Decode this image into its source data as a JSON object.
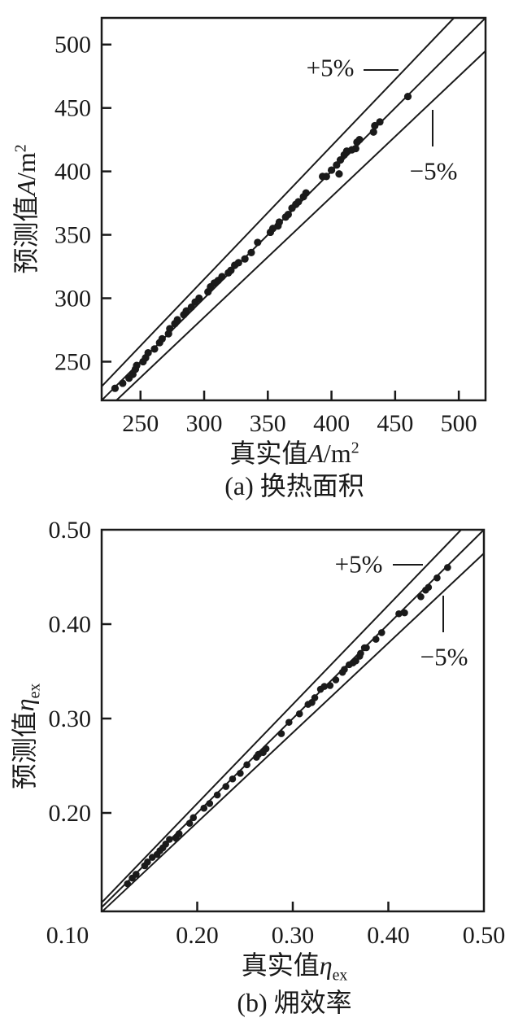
{
  "colors": {
    "ink": "#1a1a1a",
    "background": "#ffffff"
  },
  "panels": {
    "a": {
      "caption": "(a) 换热面积",
      "x_label": {
        "cjk": "真实值",
        "var": "A",
        "unit": "/m",
        "sup": "2"
      },
      "y_label": {
        "cjk": "预测值",
        "var": "A",
        "unit": "/m",
        "sup": "2"
      },
      "plus_label": "+5%",
      "minus_label": "−5%"
    },
    "b": {
      "caption": "(b) 㶲效率",
      "x_label": {
        "cjk": "真实值",
        "var": "η",
        "sub": "ex"
      },
      "y_label": {
        "cjk": "预测值",
        "var": "η",
        "sub": "ex"
      },
      "plus_label": "+5%",
      "minus_label": "−5%"
    }
  },
  "chart_data": [
    {
      "type": "scatter",
      "panel": "a",
      "caption": "(a) 换热面积",
      "xlabel": "真实值A/m²",
      "ylabel": "预测值A/m²",
      "xlim": [
        219.5,
        521
      ],
      "ylim": [
        219.5,
        521
      ],
      "x_ticks": [
        250,
        300,
        350,
        400,
        450,
        500
      ],
      "x_tick_labels": [
        "250",
        "300",
        "350",
        "400",
        "450",
        "500"
      ],
      "y_ticks": [
        250,
        300,
        350,
        400,
        450,
        500
      ],
      "y_tick_labels": [
        "250",
        "300",
        "350",
        "400",
        "450",
        "500"
      ],
      "grid": false,
      "ref_lines": [
        {
          "label": "+5%",
          "slope": 1.05
        },
        {
          "label": "y=x",
          "slope": 1.0
        },
        {
          "label": "−5%",
          "slope": 0.95
        }
      ],
      "points": [
        [
          230,
          229
        ],
        [
          236,
          233
        ],
        [
          241,
          237
        ],
        [
          244,
          240
        ],
        [
          246,
          244
        ],
        [
          247,
          247
        ],
        [
          252,
          250
        ],
        [
          254,
          253
        ],
        [
          256,
          257
        ],
        [
          261,
          260
        ],
        [
          265,
          265
        ],
        [
          267,
          268
        ],
        [
          272,
          272
        ],
        [
          273,
          276
        ],
        [
          277,
          280
        ],
        [
          279,
          283
        ],
        [
          284,
          287
        ],
        [
          286,
          290
        ],
        [
          290,
          293
        ],
        [
          293,
          297
        ],
        [
          296,
          300
        ],
        [
          303,
          305
        ],
        [
          305,
          309
        ],
        [
          308,
          312
        ],
        [
          311,
          314
        ],
        [
          314,
          317
        ],
        [
          319,
          320
        ],
        [
          321,
          322
        ],
        [
          324,
          326
        ],
        [
          327,
          328
        ],
        [
          332,
          331
        ],
        [
          337,
          336
        ],
        [
          342,
          344
        ],
        [
          352,
          352
        ],
        [
          354,
          355
        ],
        [
          358,
          357
        ],
        [
          359,
          360
        ],
        [
          364,
          364
        ],
        [
          366,
          366
        ],
        [
          369,
          371
        ],
        [
          372,
          374
        ],
        [
          374,
          376
        ],
        [
          378,
          380
        ],
        [
          380,
          383
        ],
        [
          393,
          396
        ],
        [
          396,
          396
        ],
        [
          400,
          401
        ],
        [
          404,
          405
        ],
        [
          406,
          398
        ],
        [
          407,
          409
        ],
        [
          410,
          413
        ],
        [
          412,
          416
        ],
        [
          416,
          417
        ],
        [
          419,
          418
        ],
        [
          420,
          423
        ],
        [
          422,
          425
        ],
        [
          433,
          431
        ],
        [
          434,
          436
        ],
        [
          438,
          439
        ],
        [
          460,
          459
        ]
      ]
    },
    {
      "type": "scatter",
      "panel": "b",
      "caption": "(b) 㶲效率",
      "xlabel": "真实值η_ex",
      "ylabel": "预测值η_ex",
      "xlim": [
        0.1,
        0.5
      ],
      "ylim": [
        0.0957,
        0.5
      ],
      "x_ticks": [
        0.1,
        0.2,
        0.3,
        0.4,
        0.5
      ],
      "x_tick_labels": [
        "0.10",
        "0.20",
        "0.30",
        "0.40",
        "0.50"
      ],
      "y_ticks": [
        0.2,
        0.3,
        0.4,
        0.5
      ],
      "y_tick_labels": [
        "0.20",
        "0.30",
        "0.40",
        "0.50"
      ],
      "grid": false,
      "ref_lines": [
        {
          "label": "+5%",
          "slope": 1.05
        },
        {
          "label": "y=x",
          "slope": 1.0
        },
        {
          "label": "−5%",
          "slope": 0.95
        }
      ],
      "points": [
        [
          0.127,
          0.125
        ],
        [
          0.132,
          0.131
        ],
        [
          0.136,
          0.135
        ],
        [
          0.145,
          0.144
        ],
        [
          0.148,
          0.148
        ],
        [
          0.153,
          0.153
        ],
        [
          0.158,
          0.156
        ],
        [
          0.161,
          0.16
        ],
        [
          0.164,
          0.163
        ],
        [
          0.167,
          0.167
        ],
        [
          0.171,
          0.172
        ],
        [
          0.178,
          0.173
        ],
        [
          0.181,
          0.178
        ],
        [
          0.192,
          0.189
        ],
        [
          0.196,
          0.195
        ],
        [
          0.207,
          0.205
        ],
        [
          0.213,
          0.21
        ],
        [
          0.221,
          0.219
        ],
        [
          0.23,
          0.228
        ],
        [
          0.237,
          0.236
        ],
        [
          0.245,
          0.242
        ],
        [
          0.252,
          0.251
        ],
        [
          0.262,
          0.259
        ],
        [
          0.264,
          0.262
        ],
        [
          0.269,
          0.264
        ],
        [
          0.272,
          0.268
        ],
        [
          0.288,
          0.284
        ],
        [
          0.296,
          0.296
        ],
        [
          0.307,
          0.305
        ],
        [
          0.316,
          0.315
        ],
        [
          0.32,
          0.317
        ],
        [
          0.323,
          0.322
        ],
        [
          0.329,
          0.331
        ],
        [
          0.333,
          0.334
        ],
        [
          0.339,
          0.335
        ],
        [
          0.345,
          0.341
        ],
        [
          0.352,
          0.349
        ],
        [
          0.354,
          0.352
        ],
        [
          0.359,
          0.357
        ],
        [
          0.363,
          0.359
        ],
        [
          0.366,
          0.361
        ],
        [
          0.37,
          0.366
        ],
        [
          0.371,
          0.369
        ],
        [
          0.375,
          0.375
        ],
        [
          0.377,
          0.375
        ],
        [
          0.387,
          0.384
        ],
        [
          0.393,
          0.391
        ],
        [
          0.411,
          0.411
        ],
        [
          0.417,
          0.412
        ],
        [
          0.434,
          0.429
        ],
        [
          0.439,
          0.436
        ],
        [
          0.442,
          0.439
        ],
        [
          0.451,
          0.449
        ],
        [
          0.462,
          0.46
        ]
      ]
    }
  ]
}
